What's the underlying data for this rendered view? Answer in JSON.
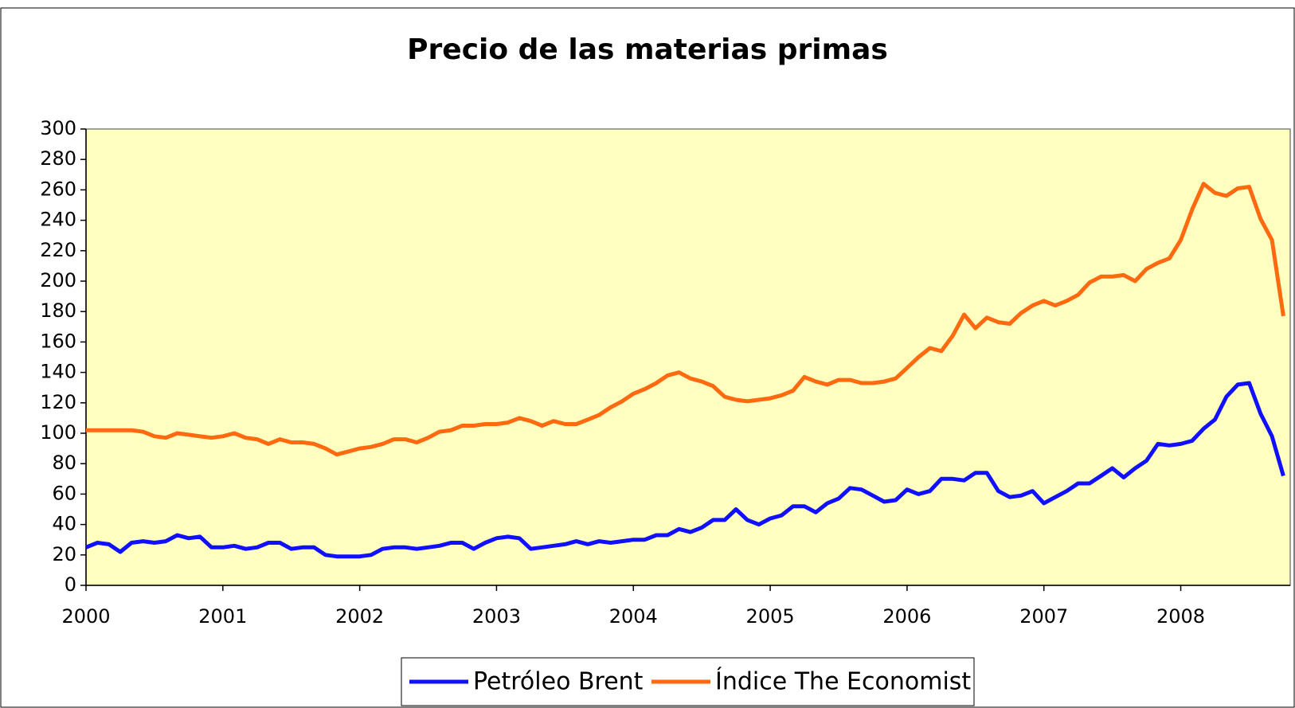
{
  "chart_data": {
    "type": "line",
    "title": "Precio de las materias primas",
    "x": [
      2000,
      2000.083,
      2000.167,
      2000.25,
      2000.333,
      2000.417,
      2000.5,
      2000.583,
      2000.667,
      2000.75,
      2000.833,
      2000.917,
      2001,
      2001.083,
      2001.167,
      2001.25,
      2001.333,
      2001.417,
      2001.5,
      2001.583,
      2001.667,
      2001.75,
      2001.833,
      2001.917,
      2002,
      2002.083,
      2002.167,
      2002.25,
      2002.333,
      2002.417,
      2002.5,
      2002.583,
      2002.667,
      2002.75,
      2002.833,
      2002.917,
      2003,
      2003.083,
      2003.167,
      2003.25,
      2003.333,
      2003.417,
      2003.5,
      2003.583,
      2003.667,
      2003.75,
      2003.833,
      2003.917,
      2004,
      2004.083,
      2004.167,
      2004.25,
      2004.333,
      2004.417,
      2004.5,
      2004.583,
      2004.667,
      2004.75,
      2004.833,
      2004.917,
      2005,
      2005.083,
      2005.167,
      2005.25,
      2005.333,
      2005.417,
      2005.5,
      2005.583,
      2005.667,
      2005.75,
      2005.833,
      2005.917,
      2006,
      2006.083,
      2006.167,
      2006.25,
      2006.333,
      2006.417,
      2006.5,
      2006.583,
      2006.667,
      2006.75,
      2006.833,
      2006.917,
      2007,
      2007.083,
      2007.167,
      2007.25,
      2007.333,
      2007.417,
      2007.5,
      2007.583,
      2007.667,
      2007.75,
      2007.833,
      2007.917,
      2008,
      2008.083,
      2008.167,
      2008.25,
      2008.333,
      2008.417,
      2008.5,
      2008.583,
      2008.667,
      2008.75
    ],
    "series": [
      {
        "name": "Petróleo Brent",
        "color": "#1010ff",
        "values": [
          25,
          28,
          27,
          22,
          28,
          29,
          28,
          29,
          33,
          31,
          32,
          25,
          25,
          26,
          24,
          25,
          28,
          28,
          24,
          25,
          25,
          20,
          19,
          19,
          19,
          20,
          24,
          25,
          25,
          24,
          25,
          26,
          28,
          28,
          24,
          28,
          31,
          32,
          31,
          24,
          25,
          26,
          27,
          29,
          27,
          29,
          28,
          29,
          30,
          30,
          33,
          33,
          37,
          35,
          38,
          43,
          43,
          50,
          43,
          40,
          44,
          46,
          52,
          52,
          48,
          54,
          57,
          64,
          63,
          59,
          55,
          56,
          63,
          60,
          62,
          70,
          70,
          69,
          74,
          74,
          62,
          58,
          59,
          62,
          54,
          58,
          62,
          67,
          67,
          72,
          77,
          71,
          77,
          82,
          93,
          92,
          93,
          95,
          103,
          109,
          124,
          132,
          133,
          113,
          98,
          72
        ]
      },
      {
        "name": "Índice The Economist",
        "color": "#ff6a10",
        "values": [
          102,
          102,
          102,
          102,
          102,
          101,
          98,
          97,
          100,
          99,
          98,
          97,
          98,
          100,
          97,
          96,
          93,
          96,
          94,
          94,
          93,
          90,
          86,
          88,
          90,
          91,
          93,
          96,
          96,
          94,
          97,
          101,
          102,
          105,
          105,
          106,
          106,
          107,
          110,
          108,
          105,
          108,
          106,
          106,
          109,
          112,
          117,
          121,
          126,
          129,
          133,
          138,
          140,
          136,
          134,
          131,
          124,
          122,
          121,
          122,
          123,
          125,
          128,
          137,
          134,
          132,
          135,
          135,
          133,
          133,
          134,
          136,
          143,
          150,
          156,
          154,
          164,
          178,
          169,
          176,
          173,
          172,
          179,
          184,
          187,
          184,
          187,
          191,
          199,
          203,
          203,
          204,
          200,
          208,
          212,
          215,
          227,
          247,
          264,
          258,
          256,
          261,
          262,
          241,
          227,
          177
        ]
      }
    ],
    "xlim": [
      2000,
      2008.8
    ],
    "xticks": [
      2000,
      2001,
      2002,
      2003,
      2004,
      2005,
      2006,
      2007,
      2008
    ],
    "ylim": [
      0,
      300
    ],
    "yticks": [
      0,
      20,
      40,
      60,
      80,
      100,
      120,
      140,
      160,
      180,
      200,
      220,
      240,
      260,
      280,
      300
    ],
    "legend": "bottom"
  }
}
